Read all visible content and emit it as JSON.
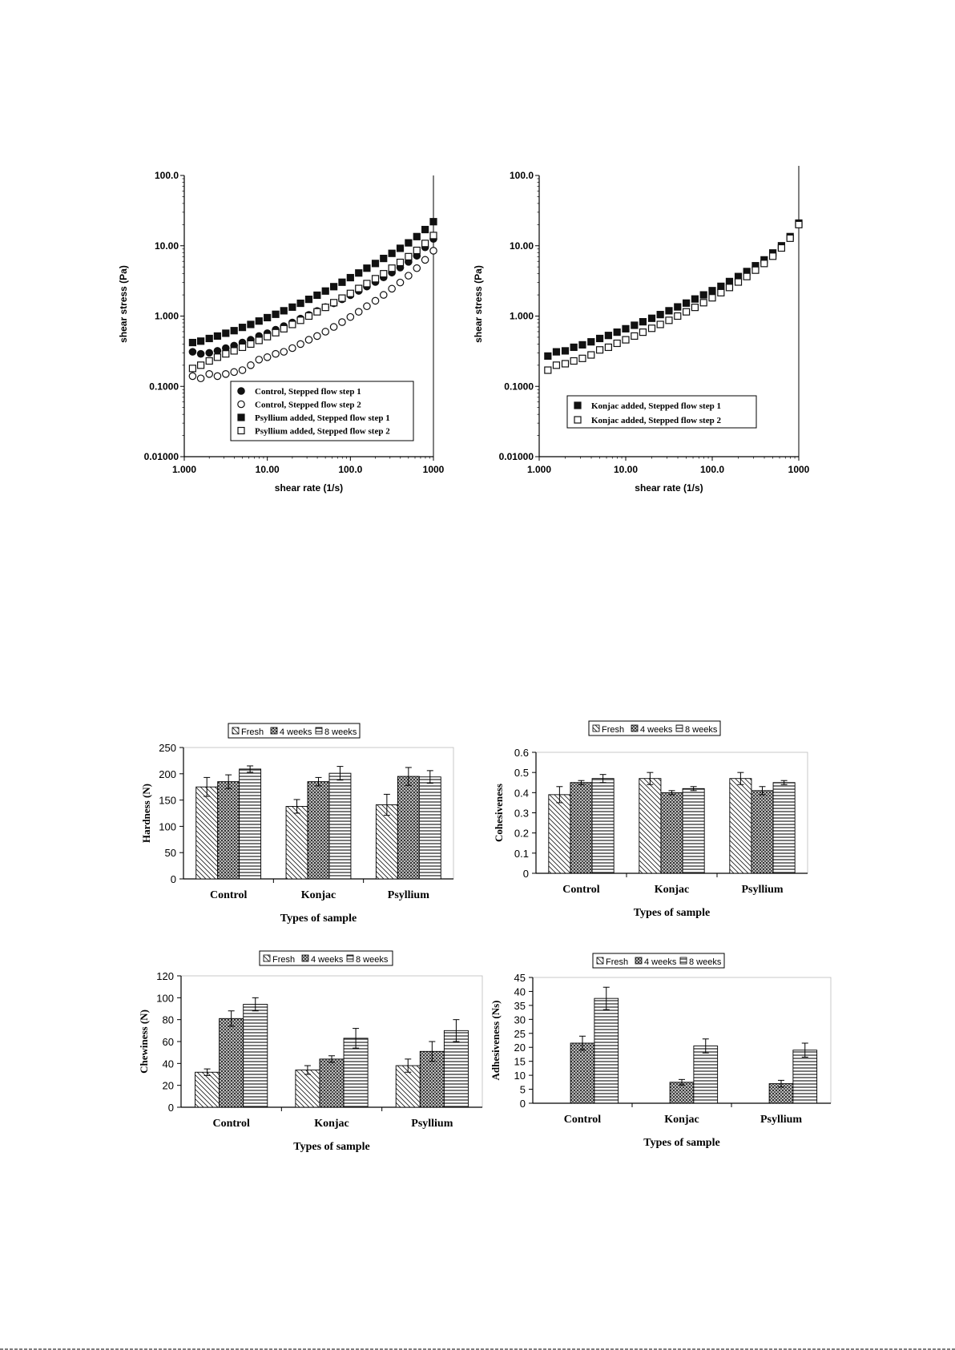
{
  "chart_data": [
    {
      "id": "flow_a",
      "type": "scatter",
      "xscale": "log",
      "yscale": "log",
      "xlim": [
        1,
        1000
      ],
      "ylim": [
        0.01,
        100
      ],
      "xticks": [
        "1.000",
        "10.00",
        "100.0",
        "1000"
      ],
      "yticks": [
        "0.01000",
        "0.1000",
        "1.000",
        "10.00",
        "100.0"
      ],
      "xlabel": "shear rate (1/s)",
      "ylabel": "shear stress (Pa)",
      "legend_position": "bottom-right",
      "series": [
        {
          "name": "Control, Stepped flow step 1",
          "marker": "circle-filled",
          "x": [
            1.26,
            1.58,
            2.0,
            2.51,
            3.16,
            3.98,
            5.01,
            6.31,
            7.94,
            10.0,
            12.6,
            15.8,
            20.0,
            25.1,
            31.6,
            39.8,
            50.1,
            63.1,
            79.4,
            100,
            126,
            158,
            200,
            251,
            316,
            398,
            501,
            631,
            794,
            1000
          ],
          "y": [
            0.31,
            0.29,
            0.3,
            0.32,
            0.35,
            0.38,
            0.42,
            0.46,
            0.52,
            0.57,
            0.64,
            0.72,
            0.81,
            0.92,
            1.04,
            1.18,
            1.34,
            1.52,
            1.73,
            1.98,
            2.28,
            2.63,
            3.05,
            3.55,
            4.15,
            4.9,
            5.9,
            7.2,
            9.5,
            12.5
          ]
        },
        {
          "name": "Control, Stepped flow step 2",
          "marker": "circle-open",
          "x": [
            1.26,
            1.58,
            2.0,
            2.51,
            3.16,
            3.98,
            5.01,
            6.31,
            7.94,
            10.0,
            12.6,
            15.8,
            20.0,
            25.1,
            31.6,
            39.8,
            50.1,
            63.1,
            79.4,
            100,
            126,
            158,
            200,
            251,
            316,
            398,
            501,
            631,
            794,
            1000
          ],
          "y": [
            0.14,
            0.13,
            0.15,
            0.14,
            0.15,
            0.16,
            0.17,
            0.2,
            0.24,
            0.26,
            0.29,
            0.31,
            0.35,
            0.4,
            0.46,
            0.52,
            0.6,
            0.7,
            0.82,
            0.97,
            1.15,
            1.38,
            1.65,
            2.0,
            2.45,
            3.0,
            3.75,
            4.8,
            6.3,
            8.5
          ]
        },
        {
          "name": "Psyllium added, Stepped flow step 1",
          "marker": "square-filled",
          "x": [
            1.26,
            1.58,
            2.0,
            2.51,
            3.16,
            3.98,
            5.01,
            6.31,
            7.94,
            10.0,
            12.6,
            15.8,
            20.0,
            25.1,
            31.6,
            39.8,
            50.1,
            63.1,
            79.4,
            100,
            126,
            158,
            200,
            251,
            316,
            398,
            501,
            631,
            794,
            1000
          ],
          "y": [
            0.42,
            0.44,
            0.48,
            0.52,
            0.57,
            0.62,
            0.69,
            0.76,
            0.85,
            0.95,
            1.06,
            1.19,
            1.34,
            1.52,
            1.73,
            1.98,
            2.27,
            2.62,
            3.03,
            3.52,
            4.1,
            4.8,
            5.6,
            6.6,
            7.8,
            9.2,
            11.0,
            13.5,
            17.0,
            22.0
          ]
        },
        {
          "name": "Psyllium added, Stepped flow step 2",
          "marker": "square-open",
          "x": [
            1.26,
            1.58,
            2.0,
            2.51,
            3.16,
            3.98,
            5.01,
            6.31,
            7.94,
            10.0,
            12.6,
            15.8,
            20.0,
            25.1,
            31.6,
            39.8,
            50.1,
            63.1,
            79.4,
            100,
            126,
            158,
            200,
            251,
            316,
            398,
            501,
            631,
            794,
            1000
          ],
          "y": [
            0.18,
            0.2,
            0.23,
            0.26,
            0.29,
            0.32,
            0.36,
            0.4,
            0.45,
            0.51,
            0.58,
            0.66,
            0.76,
            0.87,
            1.0,
            1.15,
            1.33,
            1.55,
            1.8,
            2.1,
            2.47,
            2.9,
            3.4,
            4.0,
            4.8,
            5.8,
            7.0,
            8.6,
            10.8,
            14.0
          ]
        }
      ]
    },
    {
      "id": "flow_b",
      "type": "scatter",
      "xscale": "log",
      "yscale": "log",
      "xlim": [
        1,
        1000
      ],
      "ylim": [
        0.01,
        100
      ],
      "xticks": [
        "1.000",
        "10.00",
        "100.0",
        "1000"
      ],
      "yticks": [
        "0.01000",
        "0.1000",
        "1.000",
        "10.00",
        "100.0"
      ],
      "xlabel": "shear rate (1/s)",
      "ylabel": "shear stress (Pa)",
      "legend_position": "bottom-right",
      "series": [
        {
          "name": "Konjac added, Stepped flow step 1",
          "marker": "square-filled",
          "x": [
            1.26,
            1.58,
            2.0,
            2.51,
            3.16,
            3.98,
            5.01,
            6.31,
            7.94,
            10.0,
            12.6,
            15.8,
            20.0,
            25.1,
            31.6,
            39.8,
            50.1,
            63.1,
            79.4,
            100,
            126,
            158,
            200,
            251,
            316,
            398,
            501,
            631,
            794,
            1000
          ],
          "y": [
            0.27,
            0.31,
            0.32,
            0.36,
            0.39,
            0.43,
            0.48,
            0.53,
            0.59,
            0.66,
            0.74,
            0.83,
            0.93,
            1.05,
            1.19,
            1.35,
            1.53,
            1.75,
            2.0,
            2.3,
            2.65,
            3.1,
            3.65,
            4.3,
            5.2,
            6.3,
            7.9,
            10.0,
            13.5,
            21.0
          ]
        },
        {
          "name": "Konjac added, Stepped flow step 2",
          "marker": "square-open",
          "x": [
            1.26,
            1.58,
            2.0,
            2.51,
            3.16,
            3.98,
            5.01,
            6.31,
            7.94,
            10.0,
            12.6,
            15.8,
            20.0,
            25.1,
            31.6,
            39.8,
            50.1,
            63.1,
            79.4,
            100,
            126,
            158,
            200,
            251,
            316,
            398,
            501,
            631,
            794,
            1000
          ],
          "y": [
            0.17,
            0.2,
            0.21,
            0.23,
            0.25,
            0.28,
            0.33,
            0.36,
            0.41,
            0.46,
            0.52,
            0.59,
            0.67,
            0.76,
            0.87,
            1.0,
            1.15,
            1.33,
            1.55,
            1.82,
            2.15,
            2.55,
            3.05,
            3.65,
            4.5,
            5.6,
            7.1,
            9.3,
            12.8,
            20.0
          ]
        }
      ]
    },
    {
      "id": "hardness",
      "type": "bar",
      "categories": [
        "Control",
        "Konjac",
        "Psyllium"
      ],
      "ylabel": "Hardness (N)",
      "xlabel": "Types of sample",
      "ylim": [
        0,
        250
      ],
      "yticks": [
        "0",
        "50",
        "100",
        "150",
        "200",
        "250"
      ],
      "legend": [
        "Fresh",
        "4 weeks",
        "8 weeks"
      ],
      "legend_position": "top",
      "series": [
        {
          "name": "Fresh",
          "values": [
            175,
            138,
            141
          ],
          "errors": [
            18,
            13,
            20
          ]
        },
        {
          "name": "4 weeks",
          "values": [
            185,
            185,
            195
          ],
          "errors": [
            13,
            8,
            17
          ]
        },
        {
          "name": "8 weeks",
          "values": [
            209,
            201,
            194
          ],
          "errors": [
            6,
            13,
            12
          ]
        }
      ]
    },
    {
      "id": "cohesiveness",
      "type": "bar",
      "categories": [
        "Control",
        "Konjac",
        "Psyllium"
      ],
      "ylabel": "Cohesiveness",
      "xlabel": "Types of sample",
      "ylim": [
        0,
        0.6
      ],
      "yticks": [
        "0",
        "0.1",
        "0.2",
        "0.3",
        "0.4",
        "0.5",
        "0.6"
      ],
      "legend": [
        "Fresh",
        "4 weeks",
        "8 weeks"
      ],
      "legend_position": "top",
      "series": [
        {
          "name": "Fresh",
          "values": [
            0.39,
            0.47,
            0.47
          ],
          "errors": [
            0.04,
            0.03,
            0.03
          ]
        },
        {
          "name": "4 weeks",
          "values": [
            0.45,
            0.4,
            0.41
          ],
          "errors": [
            0.01,
            0.01,
            0.02
          ]
        },
        {
          "name": "8 weeks",
          "values": [
            0.47,
            0.42,
            0.45
          ],
          "errors": [
            0.02,
            0.01,
            0.01
          ]
        }
      ]
    },
    {
      "id": "chewiness",
      "type": "bar",
      "categories": [
        "Control",
        "Konjac",
        "Psyllium"
      ],
      "ylabel": "Chewiness (N)",
      "xlabel": "Types of sample",
      "ylim": [
        0,
        120
      ],
      "yticks": [
        "0",
        "20",
        "40",
        "60",
        "80",
        "100",
        "120"
      ],
      "legend": [
        "Fresh",
        "4 weeks",
        "8 weeks"
      ],
      "legend_position": "top",
      "series": [
        {
          "name": "Fresh",
          "values": [
            32,
            34,
            38
          ],
          "errors": [
            3,
            4,
            6
          ]
        },
        {
          "name": "4 weeks",
          "values": [
            81,
            44,
            51
          ],
          "errors": [
            7,
            3,
            9
          ]
        },
        {
          "name": "8 weeks",
          "values": [
            94,
            63,
            70
          ],
          "errors": [
            6,
            9,
            10
          ]
        }
      ]
    },
    {
      "id": "adhesiveness",
      "type": "bar",
      "categories": [
        "Control",
        "Konjac",
        "Psyllium"
      ],
      "ylabel": "Adhesiveness (Ns)",
      "xlabel": "Types of sample",
      "ylim": [
        0,
        45
      ],
      "yticks": [
        "0",
        "5",
        "10",
        "15",
        "20",
        "25",
        "30",
        "35",
        "40",
        "45"
      ],
      "legend": [
        "Fresh",
        "4 weeks",
        "8 weeks"
      ],
      "legend_position": "top",
      "series": [
        {
          "name": "Fresh",
          "values": [
            0,
            0,
            0
          ],
          "errors": [
            0,
            0,
            0
          ]
        },
        {
          "name": "4 weeks",
          "values": [
            21.5,
            7.5,
            7.0
          ],
          "errors": [
            2.5,
            1.0,
            1.2
          ]
        },
        {
          "name": "8 weeks",
          "values": [
            37.5,
            20.5,
            19.0
          ],
          "errors": [
            4.0,
            2.5,
            2.5
          ]
        }
      ]
    }
  ]
}
